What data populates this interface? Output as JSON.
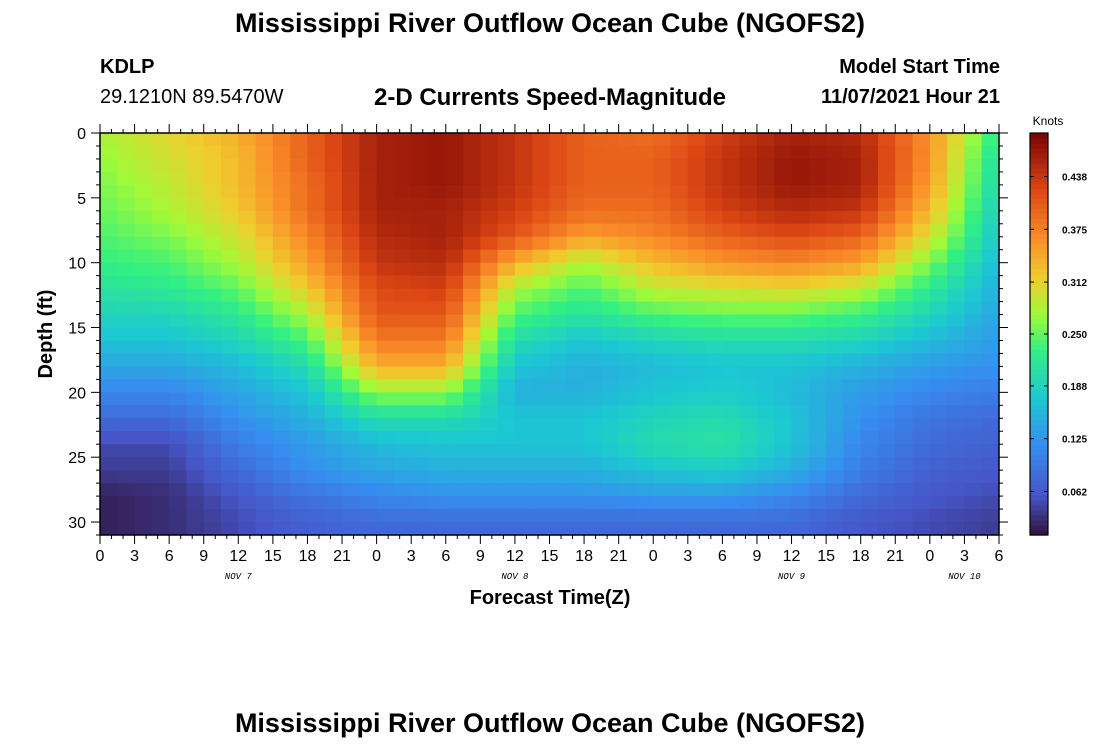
{
  "title": "Mississippi River Outflow Ocean Cube (NGOFS2)",
  "station": {
    "id": "KDLP",
    "coords": "29.1210N  89.5470W"
  },
  "subtitle": "2-D Currents Speed-Magnitude",
  "model": {
    "label": "Model Start Time",
    "value": "11/07/2021 Hour 21"
  },
  "footer_title": "Mississippi River Outflow Ocean Cube (NGOFS2)",
  "chart_data": {
    "type": "heatmap",
    "xlabel": "Forecast Time(Z)",
    "ylabel": "Depth (ft)",
    "x_start": "2021-11-07 00Z",
    "x_end": "2021-11-10 06Z",
    "x_tick_labels": [
      "0",
      "3",
      "6",
      "9",
      "12",
      "15",
      "18",
      "21",
      "0",
      "3",
      "6",
      "9",
      "12",
      "15",
      "18",
      "21",
      "0",
      "3",
      "6",
      "9",
      "12",
      "15",
      "18",
      "21",
      "0",
      "3",
      "6"
    ],
    "day_labels": [
      {
        "label": "NOV 7",
        "hour": 12
      },
      {
        "label": "NOV 8",
        "hour": 36
      },
      {
        "label": "NOV 9",
        "hour": 60
      },
      {
        "label": "NOV 10",
        "hour": 75
      }
    ],
    "ylim": [
      31,
      0
    ],
    "y_ticks": [
      0,
      5,
      10,
      15,
      20,
      25,
      30
    ],
    "colorbar": {
      "label": "Knots",
      "ticks": [
        0.062,
        0.125,
        0.188,
        0.25,
        0.312,
        0.375,
        0.438
      ],
      "min": 0.01,
      "max": 0.49
    },
    "depth_levels_ft": [
      0,
      2,
      4,
      6,
      8,
      10,
      12,
      14,
      16,
      18,
      20,
      22,
      24,
      26,
      28,
      30
    ],
    "hours": [
      0,
      6,
      12,
      18,
      24,
      30,
      36,
      42,
      48,
      54,
      60,
      66,
      72,
      78
    ],
    "speed_knots": [
      [
        0.28,
        0.31,
        0.34,
        0.4,
        0.46,
        0.47,
        0.44,
        0.4,
        0.39,
        0.43,
        0.46,
        0.45,
        0.36,
        0.22
      ],
      [
        0.27,
        0.3,
        0.33,
        0.4,
        0.46,
        0.47,
        0.44,
        0.4,
        0.4,
        0.44,
        0.47,
        0.46,
        0.36,
        0.2
      ],
      [
        0.26,
        0.29,
        0.33,
        0.39,
        0.46,
        0.47,
        0.44,
        0.4,
        0.4,
        0.44,
        0.47,
        0.46,
        0.35,
        0.19
      ],
      [
        0.25,
        0.28,
        0.32,
        0.39,
        0.46,
        0.46,
        0.43,
        0.39,
        0.39,
        0.43,
        0.45,
        0.44,
        0.33,
        0.18
      ],
      [
        0.24,
        0.26,
        0.3,
        0.37,
        0.45,
        0.46,
        0.41,
        0.35,
        0.37,
        0.4,
        0.42,
        0.4,
        0.3,
        0.17
      ],
      [
        0.23,
        0.24,
        0.28,
        0.35,
        0.44,
        0.45,
        0.34,
        0.28,
        0.33,
        0.36,
        0.37,
        0.35,
        0.26,
        0.16
      ],
      [
        0.21,
        0.22,
        0.25,
        0.32,
        0.42,
        0.43,
        0.28,
        0.24,
        0.29,
        0.3,
        0.31,
        0.29,
        0.22,
        0.15
      ],
      [
        0.19,
        0.19,
        0.22,
        0.28,
        0.41,
        0.41,
        0.24,
        0.21,
        0.24,
        0.25,
        0.25,
        0.23,
        0.19,
        0.14
      ],
      [
        0.17,
        0.17,
        0.19,
        0.24,
        0.38,
        0.38,
        0.2,
        0.17,
        0.19,
        0.2,
        0.2,
        0.19,
        0.16,
        0.13
      ],
      [
        0.14,
        0.14,
        0.16,
        0.2,
        0.34,
        0.34,
        0.17,
        0.15,
        0.16,
        0.17,
        0.17,
        0.15,
        0.13,
        0.12
      ],
      [
        0.11,
        0.11,
        0.14,
        0.17,
        0.27,
        0.27,
        0.15,
        0.15,
        0.17,
        0.18,
        0.16,
        0.13,
        0.11,
        0.1
      ],
      [
        0.08,
        0.08,
        0.12,
        0.15,
        0.2,
        0.2,
        0.17,
        0.17,
        0.19,
        0.2,
        0.17,
        0.12,
        0.09,
        0.08
      ],
      [
        0.05,
        0.05,
        0.1,
        0.13,
        0.16,
        0.17,
        0.17,
        0.17,
        0.2,
        0.21,
        0.17,
        0.11,
        0.08,
        0.07
      ],
      [
        0.04,
        0.04,
        0.08,
        0.12,
        0.14,
        0.15,
        0.15,
        0.15,
        0.17,
        0.18,
        0.15,
        0.1,
        0.07,
        0.06
      ],
      [
        0.02,
        0.03,
        0.06,
        0.09,
        0.11,
        0.12,
        0.12,
        0.12,
        0.13,
        0.13,
        0.11,
        0.08,
        0.06,
        0.05
      ],
      [
        0.02,
        0.03,
        0.05,
        0.07,
        0.08,
        0.08,
        0.08,
        0.08,
        0.08,
        0.08,
        0.08,
        0.06,
        0.05,
        0.04
      ]
    ]
  }
}
